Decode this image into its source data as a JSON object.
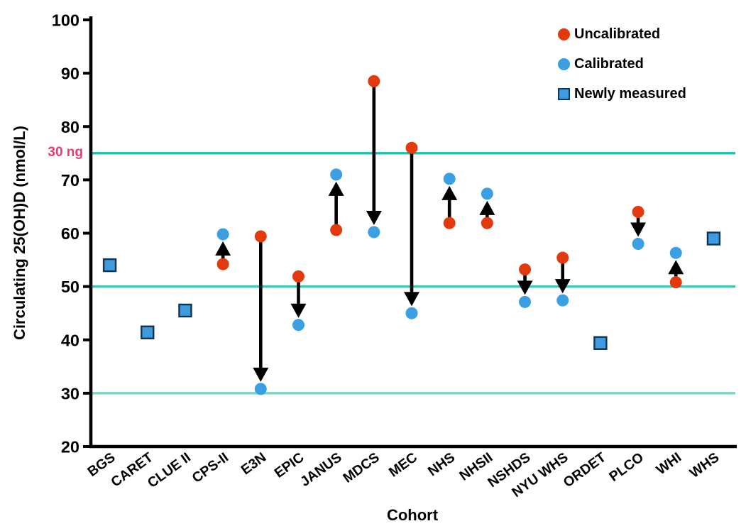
{
  "figure": {
    "y_axis_label": "Circulating 25(OH)D (nmol/L)",
    "x_axis_label": "Cohort"
  },
  "legend": {
    "items": [
      {
        "label": "Uncalibrated",
        "marker": "circle",
        "color": "#E2390E",
        "border": "#E2390E"
      },
      {
        "label": "Calibrated",
        "marker": "circle",
        "color": "#3B9FE4",
        "border": "#3B9FE4"
      },
      {
        "label": "Newly measured",
        "marker": "square",
        "color": "#3E9CDE",
        "border": "#14344C"
      }
    ]
  },
  "chart_data": {
    "type": "scatter",
    "title": "",
    "xlabel": "Cohort",
    "ylabel": "Circulating 25(OH)D (nmol/L)",
    "ylim": [
      20,
      100
    ],
    "y_ticks": [
      20,
      30,
      40,
      50,
      60,
      70,
      80,
      90,
      100
    ],
    "grid": false,
    "legend_position": "top-right",
    "arrows": "black arrow drawn from Uncalibrated value toward Calibrated value for each cohort having both",
    "categories": [
      "BGS",
      "CARET",
      "CLUE II",
      "CPS-II",
      "E3N",
      "EPIC",
      "JANUS",
      "MDCS",
      "MEC",
      "NHS",
      "NHSII",
      "NSHDS",
      "NYU WHS",
      "ORDET",
      "PLCO",
      "WHI",
      "WHS"
    ],
    "series": [
      {
        "name": "Uncalibrated",
        "marker": "circle",
        "color": "#E2390E",
        "values": [
          null,
          null,
          null,
          54.2,
          59.4,
          51.9,
          60.6,
          88.5,
          76.0,
          61.9,
          61.9,
          53.2,
          55.4,
          null,
          64.0,
          50.8,
          null
        ]
      },
      {
        "name": "Calibrated",
        "marker": "circle",
        "color": "#3B9FE4",
        "values": [
          null,
          null,
          null,
          59.8,
          30.8,
          42.8,
          71.0,
          60.2,
          45.0,
          70.2,
          67.4,
          47.1,
          47.4,
          null,
          58.0,
          56.3,
          null
        ]
      },
      {
        "name": "Newly measured",
        "marker": "square",
        "color": "#3E9CDE",
        "border_color": "#14344C",
        "values": [
          54.0,
          41.4,
          45.5,
          null,
          null,
          null,
          null,
          null,
          null,
          null,
          null,
          null,
          null,
          39.4,
          null,
          null,
          59.0
        ]
      }
    ],
    "reference_lines": [
      {
        "value": 75,
        "label": "30 ng",
        "label_color": "#EE3A6E",
        "color": "#1FBFAF"
      },
      {
        "value": 50,
        "label": "",
        "label_color": "",
        "color": "#41C7B9"
      },
      {
        "value": 30,
        "label": "",
        "label_color": "",
        "color": "#7ED4C8"
      }
    ],
    "arrow_color": "#000000",
    "axis_color": "#000000"
  }
}
